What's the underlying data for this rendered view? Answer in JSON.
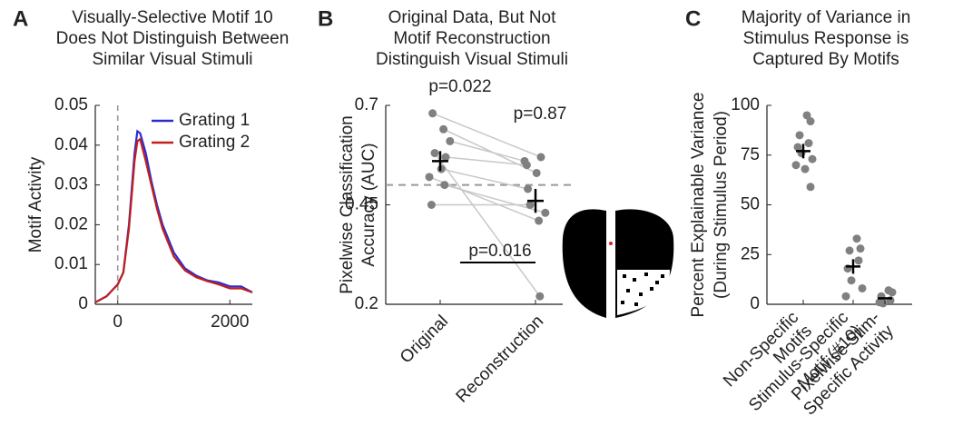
{
  "chart_data": [
    {
      "type": "line",
      "panel": "A",
      "title": [
        "Visually-Selective Motif 10",
        "Does Not Distinguish Between",
        "Similar Visual Stimuli"
      ],
      "ylabel": "Motif Activity",
      "x": [
        -400,
        -200,
        0,
        100,
        200,
        300,
        350,
        400,
        500,
        600,
        700,
        800,
        1000,
        1200,
        1400,
        1600,
        1800,
        2000,
        2200,
        2400
      ],
      "series": [
        {
          "name": "Grating 1",
          "color": "#2b2bd6",
          "values": [
            0.0005,
            0.002,
            0.005,
            0.008,
            0.02,
            0.038,
            0.0435,
            0.043,
            0.038,
            0.031,
            0.025,
            0.02,
            0.013,
            0.009,
            0.0072,
            0.006,
            0.0055,
            0.0045,
            0.0045,
            0.003
          ]
        },
        {
          "name": "Grating 2",
          "color": "#c0201c",
          "values": [
            0.0005,
            0.002,
            0.005,
            0.008,
            0.019,
            0.036,
            0.041,
            0.0415,
            0.036,
            0.03,
            0.024,
            0.019,
            0.012,
            0.0085,
            0.0068,
            0.0058,
            0.005,
            0.004,
            0.004,
            0.003
          ]
        }
      ],
      "vline": 0,
      "xlim": [
        -400,
        2400
      ],
      "xticks": [
        0,
        2000
      ],
      "ylim": [
        0,
        0.05
      ],
      "yticks": [
        0,
        0.01,
        0.02,
        0.03,
        0.04,
        0.05
      ]
    },
    {
      "type": "paired",
      "panel": "B",
      "title": [
        "Original Data, But Not",
        "Motif Reconstruction",
        "Distinguish Visual Stimuli"
      ],
      "ylabel": [
        "Pixelwise Classification",
        "Accuracy (AUC)"
      ],
      "categories": [
        "Original",
        "Reconstruction"
      ],
      "values": [
        [
          0.68,
          0.64,
          0.61,
          0.58,
          0.57,
          0.54,
          0.52,
          0.5,
          0.45
        ],
        [
          0.57,
          0.53,
          0.56,
          0.22,
          0.55,
          0.49,
          0.41,
          0.43,
          0.45
        ]
      ],
      "means": [
        0.56,
        0.46
      ],
      "sem": [
        0.025,
        0.03
      ],
      "hline": 0.5,
      "annotations": [
        "p=0.022",
        "p=0.87",
        "p=0.016"
      ],
      "color": "#808080",
      "pair_color": "#c8c8c8",
      "ylim": [
        0.2,
        0.7
      ],
      "yticks": [
        0.2,
        0.45,
        0.7
      ]
    },
    {
      "type": "strip",
      "panel": "C",
      "title": [
        "Majority of Variance in",
        "Stimulus Response is",
        "Captured By Motifs"
      ],
      "ylabel": [
        "Percent Explainable Variance",
        "(During Stimulus Period)"
      ],
      "categories": [
        [
          "Non-Specific",
          "Motifs"
        ],
        [
          "Stimulus-Specific",
          "Motif (#10)"
        ],
        [
          "Pixelwise Stim-",
          "Specific Activity"
        ]
      ],
      "values": [
        [
          95,
          92,
          85,
          81,
          79,
          76,
          73,
          70,
          68,
          59
        ],
        [
          33,
          28,
          27,
          22,
          18,
          12,
          8,
          4
        ],
        [
          7,
          6,
          4,
          2,
          1,
          0.5
        ]
      ],
      "means": [
        77,
        19,
        3
      ],
      "color": "#808080",
      "ylim": [
        0,
        100
      ],
      "yticks": [
        0,
        25,
        50,
        75,
        100
      ]
    }
  ]
}
